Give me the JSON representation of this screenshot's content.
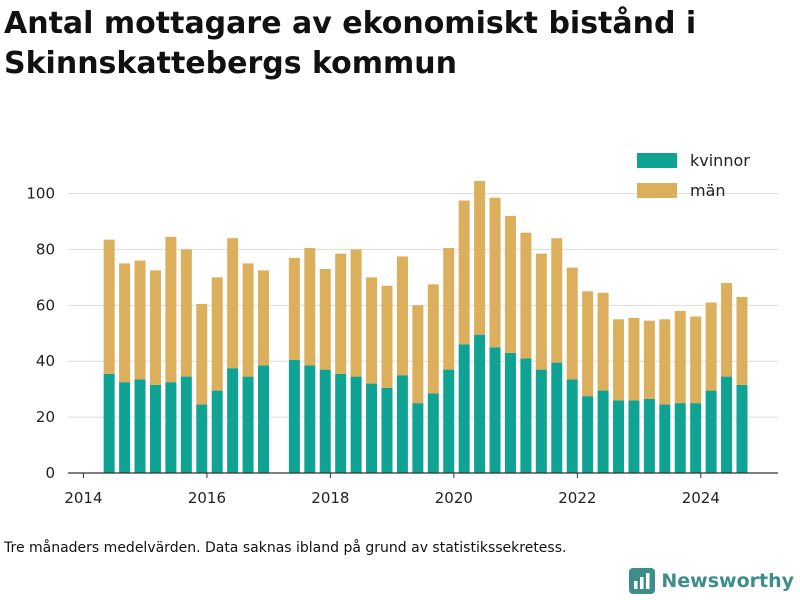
{
  "title": "Antal mottagare av ekonomiskt bistånd i Skinnskattebergs kommun",
  "note": "Tre månaders medelvärden. Data saknas ibland på grund av statistikssekretess.",
  "brand": {
    "name": "Newsworthy",
    "color": "#3d8d8b"
  },
  "colors": {
    "kvinnor": "#0fa394",
    "man": "#dcaf5c",
    "grid": "#dddddd",
    "axis": "#333333"
  },
  "chart_data": {
    "type": "bar",
    "stacked": true,
    "x_type": "date",
    "x_ticks": [
      "2014",
      "2016",
      "2018",
      "2020",
      "2022",
      "2024"
    ],
    "y_ticks": [
      0,
      20,
      40,
      60,
      80,
      100
    ],
    "xlim": [
      "2013-10",
      "2025-04"
    ],
    "ylim": [
      0,
      112
    ],
    "grid": "horizontal",
    "legend_position": "top-right",
    "x": [
      "2014-06",
      "2014-09",
      "2014-12",
      "2015-03",
      "2015-06",
      "2015-09",
      "2015-12",
      "2016-03",
      "2016-06",
      "2016-09",
      "2016-12",
      "2017-06",
      "2017-09",
      "2017-12",
      "2018-03",
      "2018-06",
      "2018-09",
      "2018-12",
      "2019-03",
      "2019-06",
      "2019-09",
      "2019-12",
      "2020-03",
      "2020-06",
      "2020-09",
      "2020-12",
      "2021-03",
      "2021-06",
      "2021-09",
      "2021-12",
      "2022-03",
      "2022-06",
      "2022-09",
      "2022-12",
      "2023-03",
      "2023-06",
      "2023-09",
      "2023-12",
      "2024-03",
      "2024-06",
      "2024-09"
    ],
    "series": [
      {
        "name": "kvinnor",
        "color": "#0fa394",
        "values": [
          35.5,
          32.5,
          33.5,
          31.5,
          32.5,
          34.5,
          24.5,
          29.5,
          37.5,
          34.5,
          38.5,
          40.5,
          38.5,
          37,
          35.5,
          34.5,
          32,
          30.5,
          35,
          25,
          28.5,
          37,
          46,
          49.5,
          45,
          43,
          41,
          37,
          39.5,
          33.5,
          27.5,
          29.5,
          26,
          26,
          26.5,
          24.5,
          25,
          25,
          29.5,
          34.5,
          31.5
        ]
      },
      {
        "name": "män",
        "color": "#dcaf5c",
        "values": [
          48,
          42.5,
          42.5,
          41,
          52,
          45.5,
          36,
          40.5,
          46.5,
          40.5,
          34,
          36.5,
          42,
          36,
          43,
          45.5,
          38,
          36.5,
          42.5,
          35,
          39,
          43.5,
          51.5,
          55,
          53.5,
          49,
          45,
          41.5,
          44.5,
          40,
          37.5,
          35,
          29,
          29.5,
          28,
          30.5,
          33,
          31,
          31.5,
          33.5,
          31.5
        ]
      }
    ]
  }
}
